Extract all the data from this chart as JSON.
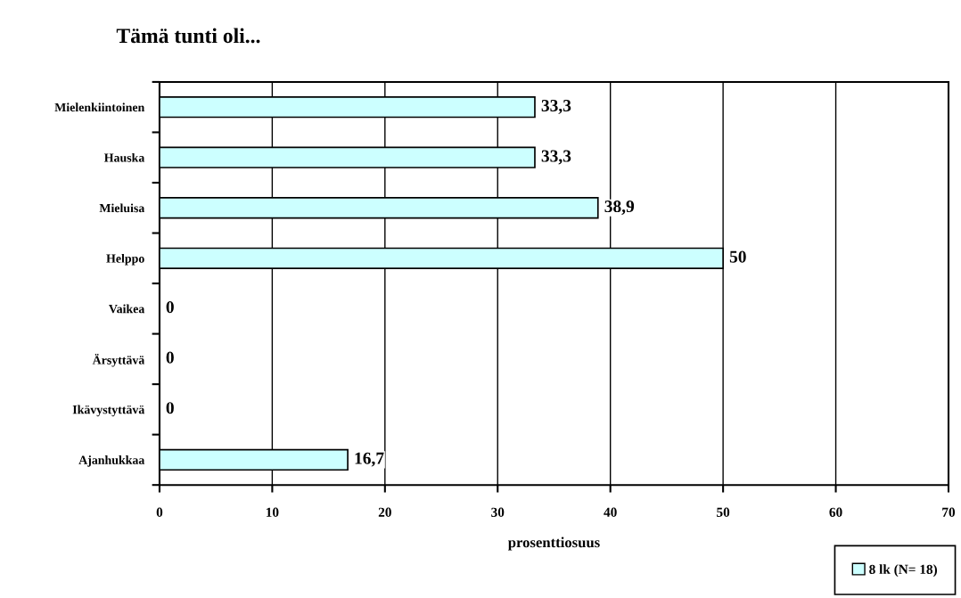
{
  "chart_data": {
    "type": "bar",
    "orientation": "horizontal",
    "title": "Tämä tunti oli...",
    "xlabel": "prosenttiosuus",
    "categories": [
      "Mielenkiintoinen",
      "Hauska",
      "Mieluisa",
      "Helppo",
      "Vaikea",
      "Ärsyttävä",
      "Ikävystyttävä",
      "Ajanhukkaa"
    ],
    "series": [
      {
        "name": "8 lk (N= 18)",
        "color": "#ccffff",
        "values": [
          33.3,
          33.3,
          38.9,
          50,
          0,
          0,
          0,
          16.7
        ],
        "value_labels": [
          "33,3",
          "33,3",
          "38,9",
          "50",
          "0",
          "0",
          "0",
          "16,7"
        ]
      }
    ],
    "xlim": [
      0,
      70
    ],
    "xticks": [
      0,
      10,
      20,
      30,
      40,
      50,
      60,
      70
    ],
    "grid": "x",
    "legend": "bottom right"
  }
}
